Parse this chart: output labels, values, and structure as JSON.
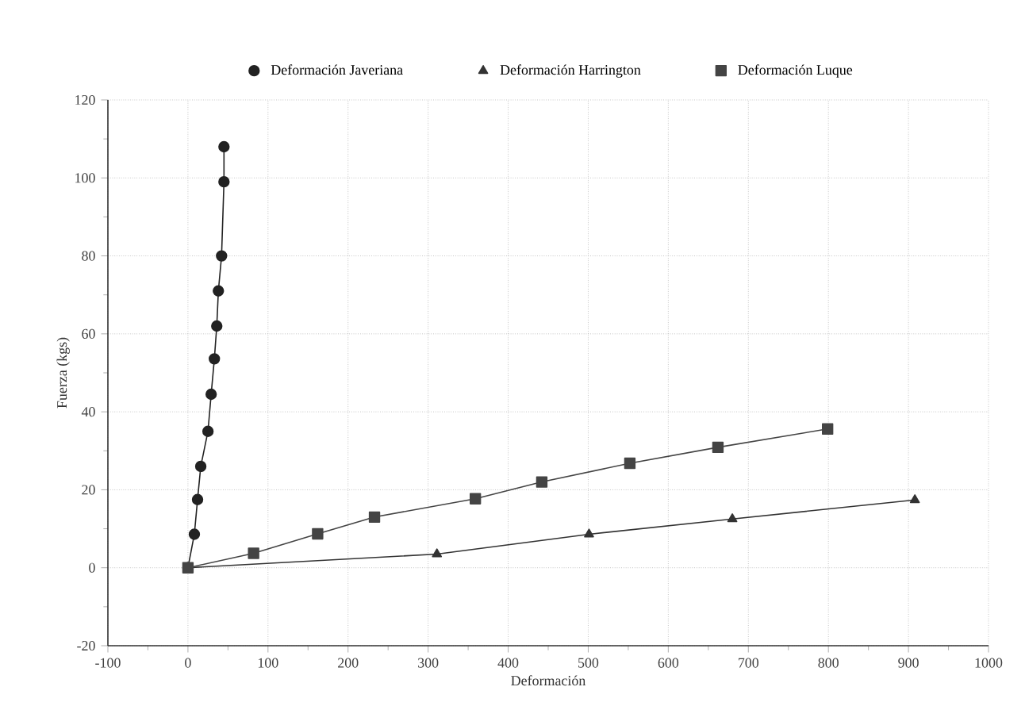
{
  "chart_data": {
    "type": "line",
    "xlabel": "Deformación",
    "ylabel": "Fuerza (kgs)",
    "xlim": [
      -100,
      1000
    ],
    "xticks": [
      -100,
      0,
      100,
      200,
      300,
      400,
      500,
      600,
      700,
      800,
      900,
      1000
    ],
    "ylim": [
      -20,
      120
    ],
    "yticks": [
      -20,
      0,
      20,
      40,
      60,
      80,
      100,
      120
    ],
    "grid": true,
    "legend": "top",
    "series": [
      {
        "name": "Deformación Javeriana",
        "color": "#222222",
        "marker": "circle",
        "x": [
          0,
          8,
          12,
          16,
          25,
          29,
          33,
          36,
          38,
          42,
          45,
          45
        ],
        "values": [
          0,
          8.6,
          17.5,
          26,
          35,
          44.5,
          53.6,
          62,
          71,
          80,
          99,
          108
        ]
      },
      {
        "name": "Deformación Harrington",
        "color": "#333333",
        "marker": "triangle",
        "x": [
          0,
          311,
          501,
          680,
          908
        ],
        "values": [
          0,
          3.5,
          8.6,
          12.5,
          17.4
        ]
      },
      {
        "name": "Deformación Luque",
        "color": "#444444",
        "marker": "square",
        "x": [
          0,
          82,
          162,
          233,
          359,
          442,
          552,
          662,
          799
        ],
        "values": [
          0,
          3.7,
          8.7,
          13,
          17.7,
          22,
          26.8,
          30.9,
          35.6
        ]
      }
    ]
  }
}
